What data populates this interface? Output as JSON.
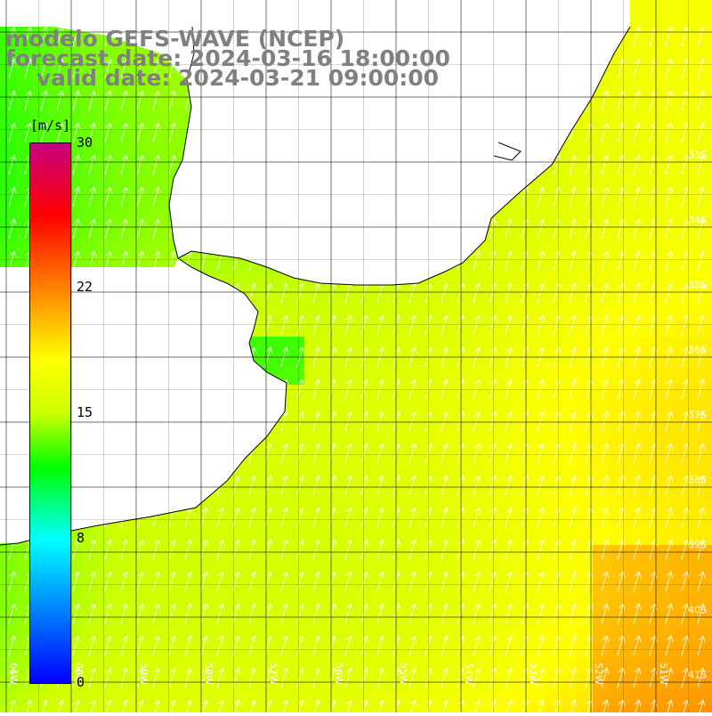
{
  "title": {
    "line1": "modelo GEFS-WAVE (NCEP)",
    "line2": "forecast date: 2024-03-16 18:00:00",
    "line3": "    valid date: 2024-03-21 09:00:00"
  },
  "colorbar": {
    "unit": "[m/s]",
    "ticks": [
      {
        "label": "30",
        "value": 30
      },
      {
        "label": "22",
        "value": 22
      },
      {
        "label": "15",
        "value": 15
      },
      {
        "label": "8",
        "value": 8
      },
      {
        "label": "0",
        "value": 0
      }
    ],
    "stops": [
      {
        "value": 0,
        "color": "#0000ff"
      },
      {
        "value": 4,
        "color": "#0080ff"
      },
      {
        "value": 8,
        "color": "#00ffff"
      },
      {
        "value": 12,
        "color": "#00ff00"
      },
      {
        "value": 15,
        "color": "#ccff00"
      },
      {
        "value": 18,
        "color": "#ffff00"
      },
      {
        "value": 22,
        "color": "#ff8000"
      },
      {
        "value": 26,
        "color": "#ff0000"
      },
      {
        "value": 30,
        "color": "#c8007f"
      }
    ]
  },
  "map": {
    "lat_labels": [
      "33S",
      "34S",
      "35S",
      "36S",
      "37S",
      "38S",
      "39S",
      "40S",
      "41S"
    ],
    "lon_labels": [
      "61W",
      "60W",
      "59W",
      "58W",
      "57W",
      "56W",
      "55W",
      "54W",
      "53W",
      "52W",
      "51W"
    ],
    "land_color": "#ffffff",
    "coast_color": "#000000",
    "grid_color": "#000000",
    "arrow_color": "#ffffff",
    "arrow_direction": "north-northeast",
    "wind_speed_note_range_m_s": [
      8,
      22
    ]
  }
}
